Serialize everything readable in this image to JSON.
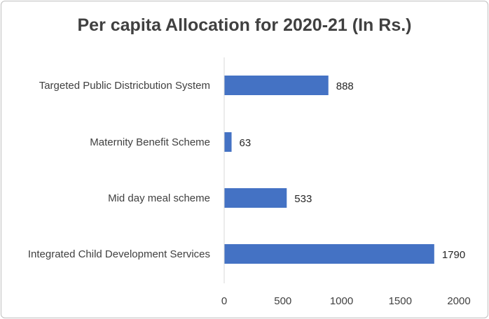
{
  "chart_data": {
    "type": "bar",
    "orientation": "horizontal",
    "title": "Per capita Allocation for 2020-21 (In Rs.)",
    "categories": [
      "Targeted Public Districbution System",
      "Maternity Benefit Scheme",
      "Mid day meal scheme",
      "Integrated Child Development Services"
    ],
    "values": [
      888,
      63,
      533,
      1790
    ],
    "data_labels": [
      "888",
      "63",
      "533",
      "1790"
    ],
    "xlim": [
      0,
      2000
    ],
    "xticks": [
      "0",
      "500",
      "1000",
      "1500",
      "2000"
    ],
    "xlabel": "",
    "ylabel": "",
    "bar_color": "#4472c4",
    "grid": false,
    "legend": "none"
  }
}
